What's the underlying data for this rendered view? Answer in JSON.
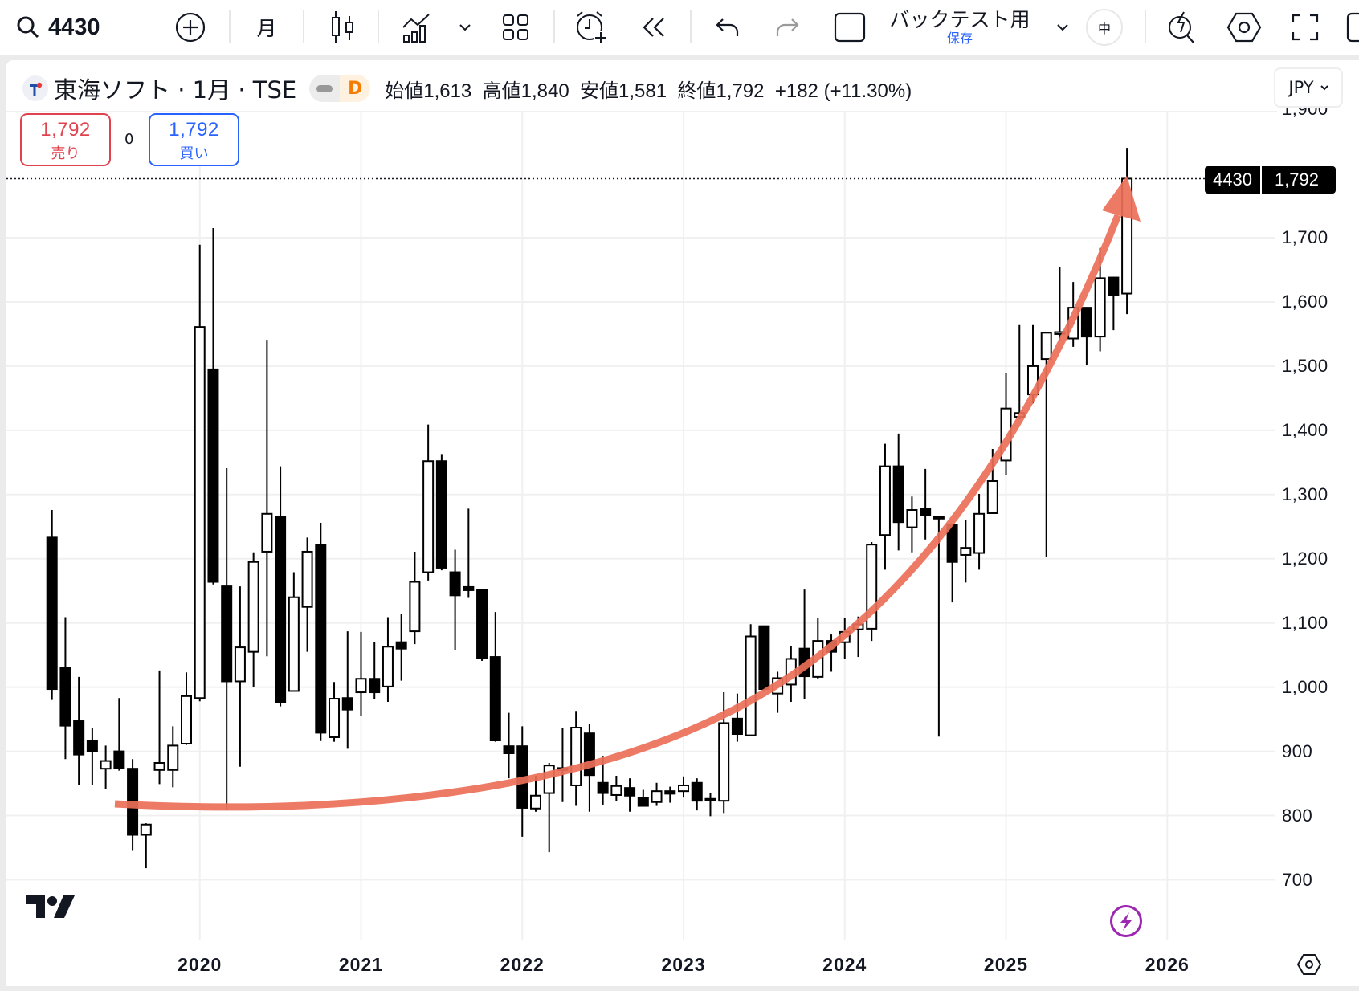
{
  "toolbar": {
    "symbol": "4430",
    "interval": "月",
    "layout_name": "バックテスト用",
    "save_label": "保存",
    "size_label": "中"
  },
  "legend": {
    "title": "東海ソフト · 1月 · TSE",
    "badge": "D",
    "open_label": "始値",
    "open": "1,613",
    "high_label": "高値",
    "high": "1,840",
    "low_label": "安値",
    "low": "1,581",
    "close_label": "終値",
    "close": "1,792",
    "change": "+182 (+11.30%)",
    "currency": "JPY"
  },
  "trade": {
    "sell_price": "1,792",
    "sell_label": "売り",
    "spread": "0",
    "buy_price": "1,792",
    "buy_label": "買い"
  },
  "price_label": {
    "symbol": "4430",
    "price": "1,792"
  },
  "colors": {
    "curve": "#ec6f58",
    "sell": "#e0434f",
    "buy": "#2962ff",
    "accent_purple": "#9c27b0",
    "badge": "#f57c00"
  },
  "chart_data": {
    "type": "candlestick",
    "title": "東海ソフト · 1月 · TSE",
    "xlabel": "",
    "ylabel": "JPY",
    "ylim": [
      650,
      1900
    ],
    "y_ticks": [
      "700",
      "800",
      "900",
      "1,000",
      "1,100",
      "1,200",
      "1,300",
      "1,400",
      "1,500",
      "1,600",
      "1,700",
      "1,900"
    ],
    "x_ticks": [
      "2020",
      "2021",
      "2022",
      "2023",
      "2024",
      "2025",
      "2026"
    ],
    "grid": true,
    "start_month": "2019-02",
    "ohlc": [
      [
        1233,
        1276,
        980,
        997
      ],
      [
        1030,
        1109,
        888,
        940
      ],
      [
        947,
        1016,
        847,
        895
      ],
      [
        916,
        937,
        847,
        900
      ],
      [
        873,
        909,
        842,
        885
      ],
      [
        900,
        983,
        870,
        874
      ],
      [
        873,
        888,
        745,
        770
      ],
      [
        770,
        788,
        718,
        786
      ],
      [
        871,
        1026,
        849,
        882
      ],
      [
        871,
        939,
        844,
        909
      ],
      [
        912,
        1023,
        910,
        986
      ],
      [
        983,
        1689,
        978,
        1561
      ],
      [
        1495,
        1715,
        1160,
        1164
      ],
      [
        1157,
        1341,
        809,
        1009
      ],
      [
        1009,
        1157,
        876,
        1062
      ],
      [
        1055,
        1210,
        1000,
        1195
      ],
      [
        1211,
        1541,
        1048,
        1270
      ],
      [
        1265,
        1344,
        970,
        977
      ],
      [
        994,
        1179,
        994,
        1140
      ],
      [
        1125,
        1233,
        1055,
        1211
      ],
      [
        1222,
        1256,
        916,
        929
      ],
      [
        922,
        1008,
        915,
        982
      ],
      [
        983,
        1087,
        904,
        965
      ],
      [
        992,
        1086,
        955,
        1013
      ],
      [
        1013,
        1070,
        981,
        992
      ],
      [
        1001,
        1109,
        977,
        1063
      ],
      [
        1070,
        1114,
        1010,
        1060
      ],
      [
        1087,
        1211,
        1067,
        1164
      ],
      [
        1179,
        1409,
        1166,
        1352
      ],
      [
        1352,
        1363,
        1182,
        1186
      ],
      [
        1179,
        1214,
        1058,
        1143
      ],
      [
        1156,
        1278,
        1139,
        1151
      ],
      [
        1151,
        1152,
        1041,
        1045
      ],
      [
        1047,
        1117,
        915,
        917
      ],
      [
        908,
        960,
        858,
        897
      ],
      [
        908,
        939,
        767,
        812
      ],
      [
        811,
        862,
        806,
        831
      ],
      [
        835,
        882,
        743,
        878
      ],
      [
        871,
        937,
        821,
        874
      ],
      [
        847,
        963,
        815,
        937
      ],
      [
        928,
        943,
        806,
        863
      ],
      [
        851,
        893,
        817,
        835
      ],
      [
        832,
        862,
        823,
        846
      ],
      [
        843,
        858,
        806,
        831
      ],
      [
        827,
        840,
        815,
        815
      ],
      [
        821,
        851,
        815,
        838
      ],
      [
        838,
        845,
        820,
        834
      ],
      [
        838,
        861,
        828,
        847
      ],
      [
        851,
        858,
        808,
        823
      ],
      [
        826,
        835,
        799,
        824
      ],
      [
        823,
        992,
        804,
        944
      ],
      [
        951,
        990,
        915,
        927
      ],
      [
        925,
        1098,
        924,
        1079
      ],
      [
        1095,
        1096,
        994,
        997
      ],
      [
        990,
        1024,
        960,
        1014
      ],
      [
        1004,
        1064,
        977,
        1044
      ],
      [
        1060,
        1152,
        982,
        1017
      ],
      [
        1016,
        1108,
        1012,
        1072
      ],
      [
        1072,
        1082,
        1024,
        1055
      ],
      [
        1070,
        1108,
        1044,
        1086
      ],
      [
        1090,
        1110,
        1047,
        1098
      ],
      [
        1091,
        1226,
        1072,
        1222
      ],
      [
        1237,
        1379,
        1183,
        1344
      ],
      [
        1344,
        1395,
        1213,
        1257
      ],
      [
        1249,
        1297,
        1210,
        1276
      ],
      [
        1278,
        1340,
        1230,
        1268
      ],
      [
        1265,
        1266,
        923,
        1263
      ],
      [
        1253,
        1254,
        1132,
        1195
      ],
      [
        1206,
        1260,
        1163,
        1217
      ],
      [
        1209,
        1301,
        1183,
        1270
      ],
      [
        1271,
        1371,
        1270,
        1321
      ],
      [
        1353,
        1489,
        1330,
        1434
      ],
      [
        1421,
        1564,
        1417,
        1427
      ],
      [
        1456,
        1564,
        1442,
        1500
      ],
      [
        1511,
        1552,
        1203,
        1552
      ],
      [
        1550,
        1654,
        1539,
        1553
      ],
      [
        1543,
        1631,
        1530,
        1591
      ],
      [
        1591,
        1592,
        1502,
        1546
      ],
      [
        1546,
        1684,
        1523,
        1637
      ],
      [
        1638,
        1639,
        1556,
        1610
      ],
      [
        1613,
        1840,
        1581,
        1792
      ]
    ],
    "current_price": 1792,
    "annotation": "curved upward arrow"
  }
}
